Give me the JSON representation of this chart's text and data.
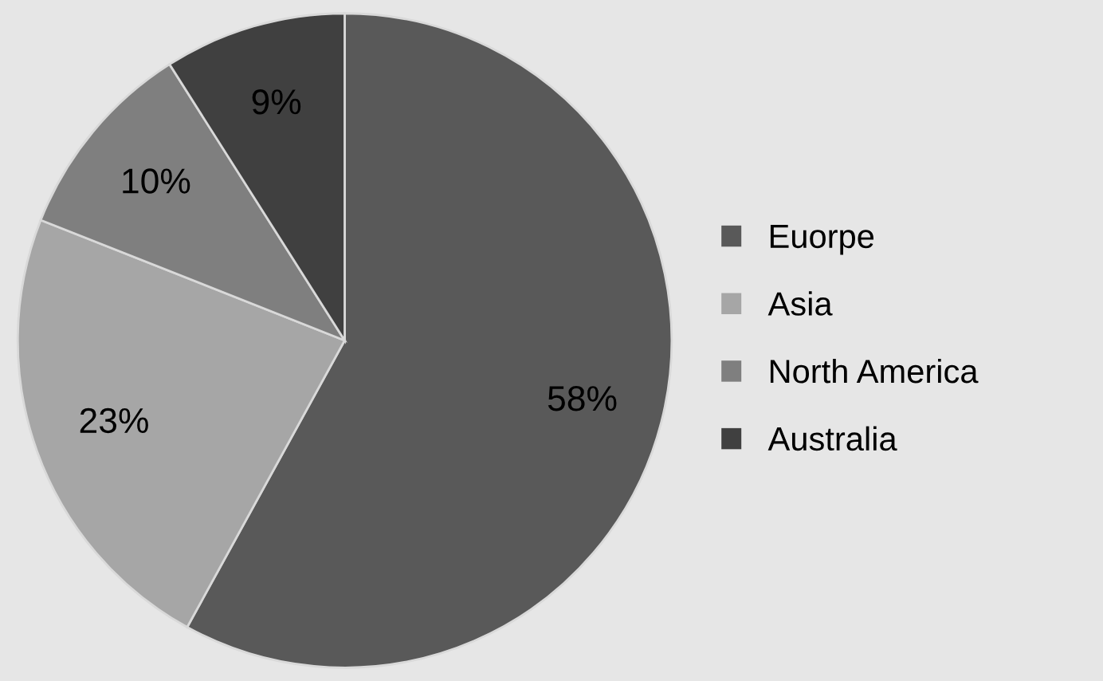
{
  "chart_data": {
    "type": "pie",
    "categories": [
      "Euorpe",
      "Asia",
      "North America",
      "Australia"
    ],
    "values": [
      58,
      23,
      10,
      9
    ],
    "colors": [
      "#595959",
      "#a6a6a6",
      "#7f7f7f",
      "#404040"
    ],
    "value_labels": [
      "58%",
      "23%",
      "10%",
      "9%"
    ],
    "legend": "right"
  }
}
